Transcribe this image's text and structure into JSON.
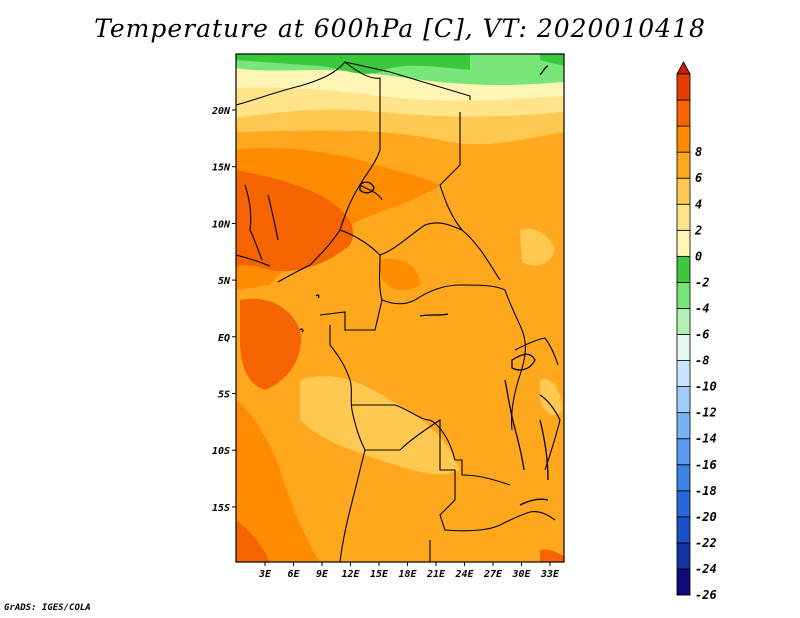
{
  "title": "Temperature at 600hPa [C], VT: 2020010418",
  "credit": "GrADS: IGES/COLA",
  "map": {
    "lon_ticks": [
      "3E",
      "6E",
      "9E",
      "12E",
      "15E",
      "18E",
      "21E",
      "24E",
      "27E",
      "30E",
      "33E"
    ],
    "lat_ticks": [
      "20N",
      "15N",
      "10N",
      "5N",
      "EQ",
      "5S",
      "10S",
      "15S"
    ]
  },
  "legend": {
    "colors": [
      "#e0e0ff",
      "#0a0a78",
      "#1432a0",
      "#1a50c8",
      "#2868dc",
      "#3c82e6",
      "#5a9aef",
      "#78b4f5",
      "#a0cdfa",
      "#c8e6ff",
      "#e6f8f0",
      "#b4f0b4",
      "#78e678",
      "#3cc83c",
      "#fff5b4",
      "#ffe48a",
      "#ffc850",
      "#ffa81e",
      "#ff8c00",
      "#f56400",
      "#e63c00",
      "#c81e00"
    ],
    "labels": [
      "-26",
      "-24",
      "-22",
      "-20",
      "-18",
      "-16",
      "-14",
      "-12",
      "-10",
      "-8",
      "-6",
      "-4",
      "-2",
      "0",
      "2",
      "4",
      "6",
      "8"
    ],
    "accent_field": "#ffa81e"
  }
}
